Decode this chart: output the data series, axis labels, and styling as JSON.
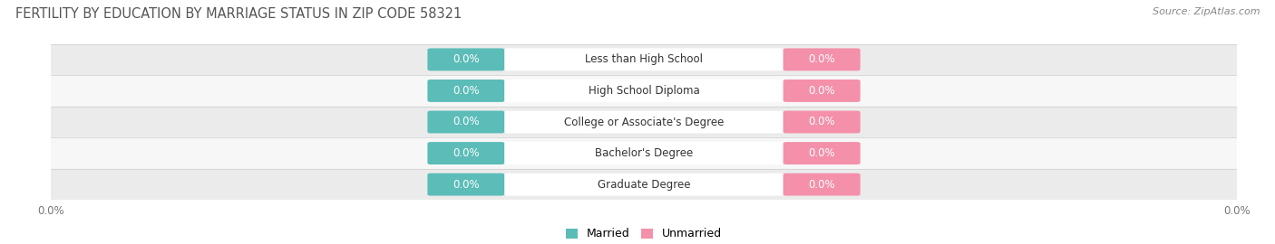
{
  "title": "FERTILITY BY EDUCATION BY MARRIAGE STATUS IN ZIP CODE 58321",
  "source_text": "Source: ZipAtlas.com",
  "categories": [
    "Less than High School",
    "High School Diploma",
    "College or Associate's Degree",
    "Bachelor's Degree",
    "Graduate Degree"
  ],
  "married_values": [
    0.0,
    0.0,
    0.0,
    0.0,
    0.0
  ],
  "unmarried_values": [
    0.0,
    0.0,
    0.0,
    0.0,
    0.0
  ],
  "married_color": "#5bbcb8",
  "unmarried_color": "#f490aa",
  "row_bg_color_odd": "#ebebeb",
  "row_bg_color_even": "#f7f7f7",
  "label_color": "#ffffff",
  "title_fontsize": 10.5,
  "source_fontsize": 8,
  "bar_label_fontsize": 8.5,
  "category_fontsize": 8.5,
  "legend_fontsize": 9,
  "axis_label_fontsize": 8.5,
  "background_color": "#ffffff"
}
